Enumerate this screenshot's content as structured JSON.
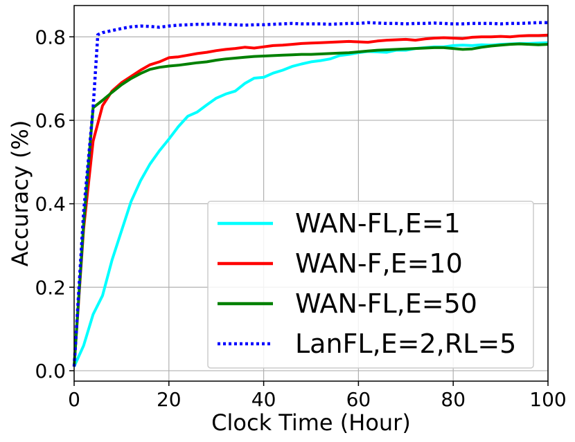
{
  "chart_data": {
    "type": "line",
    "xlabel": "Clock Time (Hour)",
    "ylabel": "Accuracy (%)",
    "xlim": [
      0,
      100
    ],
    "ylim": [
      -0.025,
      0.875
    ],
    "xticks": [
      0,
      20,
      40,
      60,
      80,
      100
    ],
    "yticks": [
      0.0,
      0.2,
      0.4,
      0.6,
      0.8
    ],
    "xtick_labels": [
      "0",
      "20",
      "40",
      "60",
      "80",
      "100"
    ],
    "ytick_labels": [
      "0.0",
      "0.2",
      "0.4",
      "0.6",
      "0.8"
    ],
    "grid": true,
    "legend_position": "lower-right",
    "series": [
      {
        "name": "WAN-FL,E=1",
        "color": "#00ffff",
        "style": "solid",
        "x": [
          0,
          2,
          4,
          6,
          8,
          10,
          12,
          14,
          16,
          18,
          20,
          22,
          24,
          26,
          28,
          30,
          32,
          34,
          36,
          38,
          40,
          42,
          44,
          46,
          48,
          50,
          52,
          54,
          56,
          58,
          60,
          62,
          64,
          66,
          68,
          70,
          72,
          74,
          76,
          78,
          80,
          82,
          84,
          86,
          88,
          90,
          92,
          94,
          96,
          98,
          100
        ],
        "y": [
          0.01,
          0.06,
          0.135,
          0.18,
          0.265,
          0.335,
          0.405,
          0.455,
          0.495,
          0.527,
          0.555,
          0.585,
          0.61,
          0.62,
          0.637,
          0.653,
          0.663,
          0.67,
          0.688,
          0.701,
          0.703,
          0.713,
          0.72,
          0.729,
          0.735,
          0.74,
          0.743,
          0.747,
          0.755,
          0.758,
          0.762,
          0.765,
          0.764,
          0.763,
          0.768,
          0.768,
          0.772,
          0.774,
          0.776,
          0.776,
          0.779,
          0.78,
          0.779,
          0.781,
          0.78,
          0.782,
          0.783,
          0.784,
          0.784,
          0.785,
          0.786
        ]
      },
      {
        "name": "WAN-F,E=10",
        "color": "#ff0000",
        "style": "solid",
        "x": [
          0,
          2,
          4,
          6,
          8,
          10,
          12,
          14,
          16,
          18,
          20,
          22,
          24,
          26,
          28,
          30,
          32,
          34,
          36,
          38,
          40,
          42,
          44,
          46,
          48,
          50,
          52,
          54,
          56,
          58,
          60,
          62,
          64,
          66,
          68,
          70,
          72,
          74,
          76,
          78,
          80,
          82,
          84,
          86,
          88,
          90,
          92,
          94,
          96,
          98,
          100
        ],
        "y": [
          0.01,
          0.34,
          0.55,
          0.635,
          0.67,
          0.69,
          0.705,
          0.72,
          0.733,
          0.74,
          0.75,
          0.752,
          0.756,
          0.76,
          0.763,
          0.767,
          0.77,
          0.772,
          0.775,
          0.773,
          0.776,
          0.779,
          0.78,
          0.782,
          0.784,
          0.785,
          0.786,
          0.787,
          0.788,
          0.789,
          0.788,
          0.787,
          0.79,
          0.792,
          0.793,
          0.794,
          0.792,
          0.795,
          0.797,
          0.798,
          0.797,
          0.796,
          0.799,
          0.8,
          0.8,
          0.801,
          0.8,
          0.802,
          0.803,
          0.803,
          0.804
        ]
      },
      {
        "name": "WAN-FL,E=50",
        "color": "#008000",
        "style": "solid",
        "x": [
          0,
          2,
          4,
          6,
          8,
          10,
          12,
          14,
          16,
          18,
          20,
          22,
          24,
          26,
          28,
          30,
          32,
          34,
          36,
          38,
          40,
          42,
          44,
          46,
          48,
          50,
          52,
          54,
          56,
          58,
          60,
          62,
          64,
          66,
          68,
          70,
          72,
          74,
          76,
          78,
          80,
          82,
          84,
          86,
          88,
          90,
          92,
          94,
          96,
          98,
          100
        ],
        "y": [
          0.01,
          0.35,
          0.63,
          0.648,
          0.667,
          0.685,
          0.7,
          0.712,
          0.722,
          0.727,
          0.73,
          0.732,
          0.735,
          0.738,
          0.74,
          0.744,
          0.747,
          0.749,
          0.751,
          0.753,
          0.754,
          0.755,
          0.756,
          0.757,
          0.758,
          0.758,
          0.759,
          0.76,
          0.761,
          0.762,
          0.764,
          0.766,
          0.768,
          0.769,
          0.77,
          0.771,
          0.772,
          0.773,
          0.774,
          0.774,
          0.772,
          0.77,
          0.771,
          0.775,
          0.778,
          0.78,
          0.782,
          0.783,
          0.782,
          0.781,
          0.782
        ]
      },
      {
        "name": "LanFL,E=2,RL=5",
        "color": "#0000ff",
        "style": "dotted",
        "x": [
          0,
          2,
          4,
          5,
          6,
          8,
          10,
          12,
          14,
          16,
          18,
          20,
          22,
          24,
          26,
          28,
          30,
          32,
          34,
          36,
          38,
          40,
          42,
          44,
          46,
          48,
          50,
          52,
          54,
          56,
          58,
          60,
          62,
          64,
          66,
          68,
          70,
          72,
          74,
          76,
          78,
          80,
          82,
          84,
          86,
          88,
          90,
          92,
          94,
          96,
          98,
          100
        ],
        "y": [
          0.01,
          0.38,
          0.63,
          0.805,
          0.81,
          0.815,
          0.82,
          0.824,
          0.826,
          0.825,
          0.823,
          0.826,
          0.828,
          0.829,
          0.83,
          0.83,
          0.831,
          0.83,
          0.829,
          0.828,
          0.829,
          0.829,
          0.83,
          0.831,
          0.832,
          0.831,
          0.831,
          0.831,
          0.83,
          0.831,
          0.832,
          0.832,
          0.834,
          0.833,
          0.832,
          0.832,
          0.831,
          0.832,
          0.832,
          0.833,
          0.832,
          0.831,
          0.831,
          0.832,
          0.832,
          0.832,
          0.831,
          0.832,
          0.832,
          0.833,
          0.834,
          0.834
        ]
      }
    ]
  }
}
